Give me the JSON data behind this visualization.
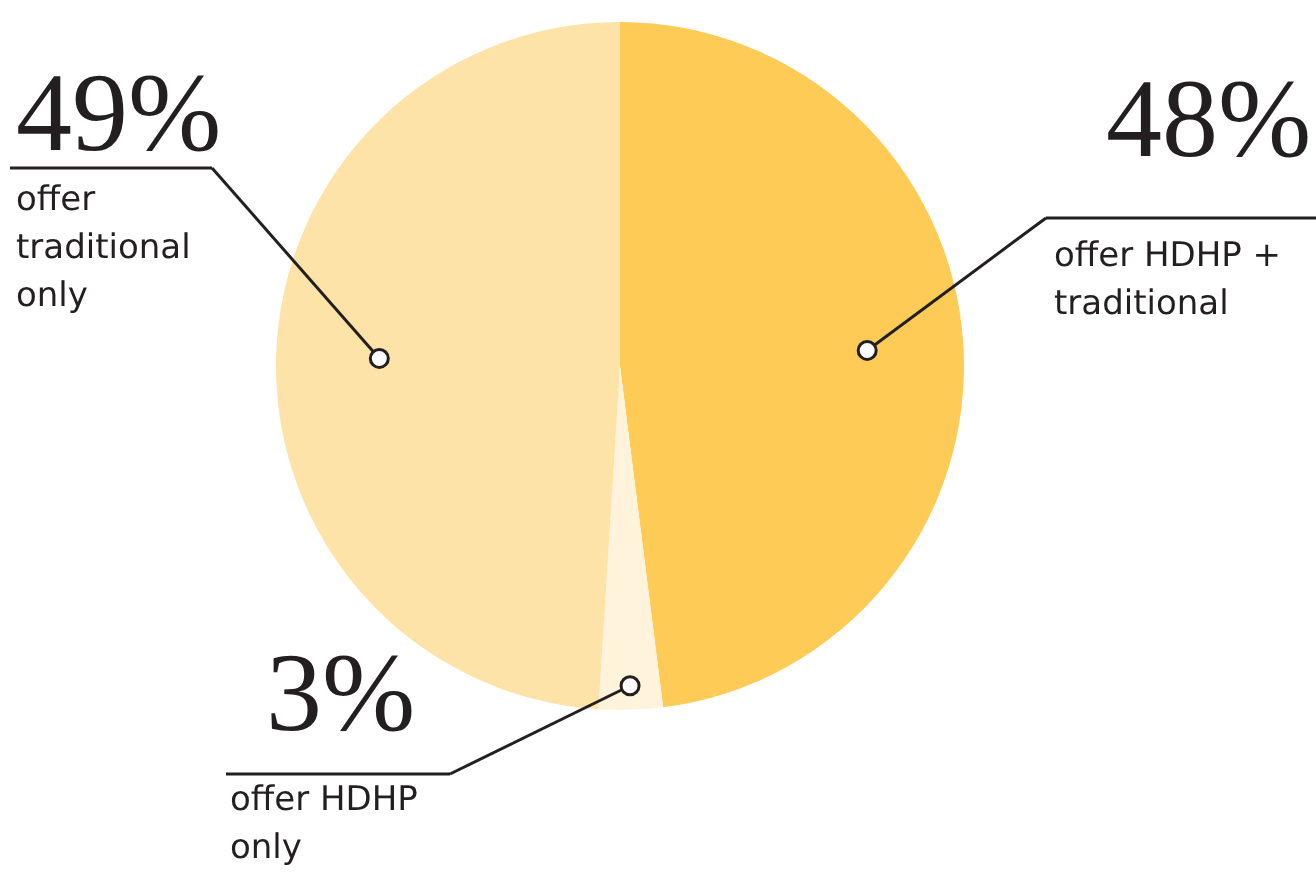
{
  "chart_data": {
    "type": "pie",
    "categories": [
      "offer HDHP + traditional",
      "offer HDHP only",
      "offer traditional only"
    ],
    "values": [
      48,
      3,
      49
    ],
    "colors": [
      "#fecb57",
      "#fff3dc",
      "#fee3a8"
    ],
    "value_labels": [
      "48%",
      "3%",
      "49%"
    ]
  }
}
